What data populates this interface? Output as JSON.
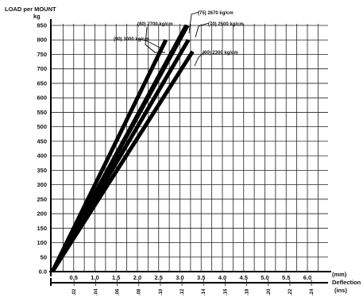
{
  "chart_data": {
    "type": "line",
    "y_axis": {
      "label_line1": "LOAD per MOUNT",
      "label_line2": "kg",
      "ticks": [
        "0.0",
        "50",
        "100",
        "150",
        "200",
        "250",
        "300",
        "350",
        "400",
        "450",
        "500",
        "550",
        "600",
        "650",
        "700",
        "750",
        "800",
        "850"
      ],
      "ylim": [
        0,
        875
      ]
    },
    "x_axis_mm": {
      "label": "(mm)",
      "ticks": [
        "0.5",
        "1.0",
        "1.5",
        "2.0",
        "2.5",
        "3.0",
        "3.5",
        "4.0",
        "4.5",
        "5.0",
        "5.5",
        "6.0"
      ],
      "xlim": [
        0,
        6.5
      ]
    },
    "x_axis_in": {
      "label_line1": "Deflection",
      "label_line2": "(ins)",
      "ticks": [
        ".02",
        ".04",
        ".06",
        ".08",
        ".10",
        ".12",
        ".14",
        ".16",
        ".18",
        ".20",
        ".22",
        ".24"
      ]
    },
    "grid": true,
    "series": [
      {
        "name": "(90) 3000 kg/cm",
        "x": [
          0,
          2.67
        ],
        "y": [
          0,
          800
        ]
      },
      {
        "name": "(80) 2700 kg/cm",
        "x": [
          0,
          3.15
        ],
        "y": [
          0,
          850
        ]
      },
      {
        "name": "(75) 2670 kg/cm",
        "x": [
          0,
          3.18
        ],
        "y": [
          0,
          850
        ]
      },
      {
        "name": "(70) 2500 kg/cm",
        "x": [
          0,
          3.2
        ],
        "y": [
          0,
          800
        ]
      },
      {
        "name": "(60) 2300 kg/cm",
        "x": [
          0,
          3.3
        ],
        "y": [
          0,
          760
        ]
      }
    ]
  }
}
